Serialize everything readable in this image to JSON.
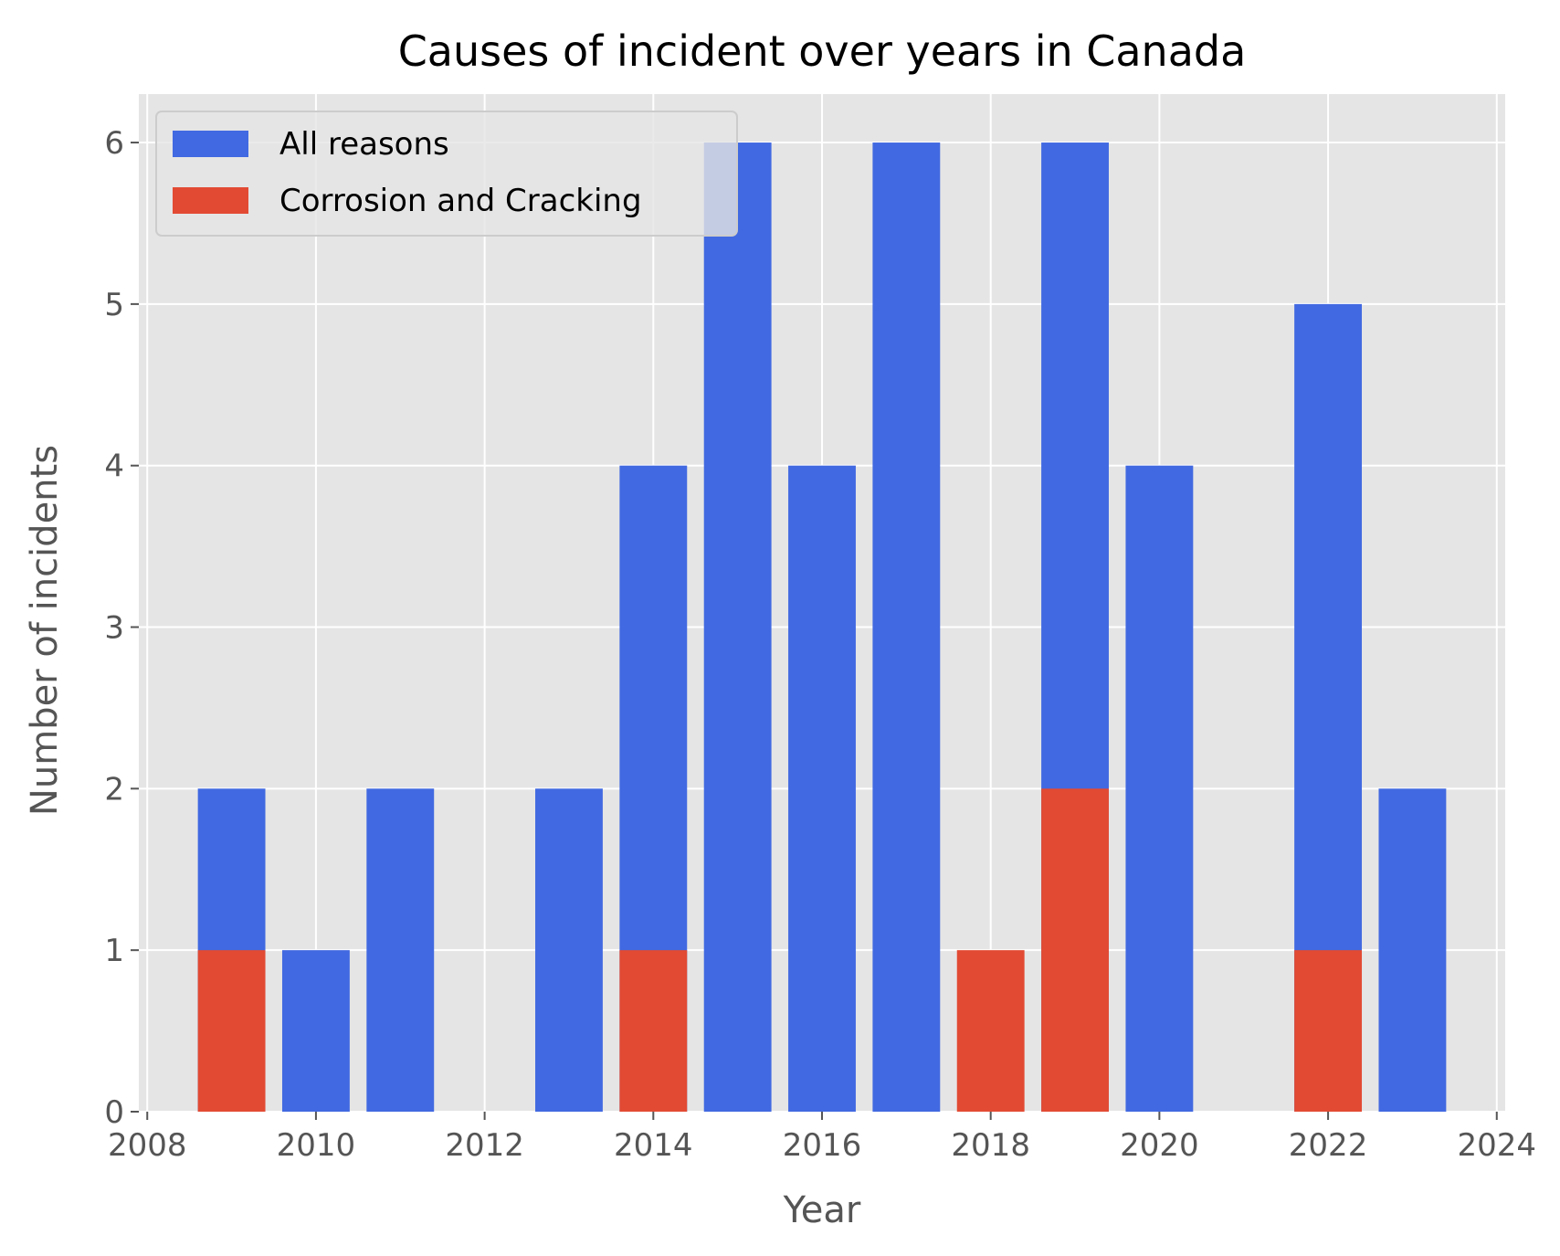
{
  "chart_data": {
    "type": "bar",
    "title": "Causes of incident over years in Canada",
    "xlabel": "Year",
    "ylabel": "Number of incidents",
    "xlim": [
      2007.9,
      2024.1
    ],
    "ylim": [
      0,
      6.3
    ],
    "x_ticks": [
      2008,
      2010,
      2012,
      2014,
      2016,
      2018,
      2020,
      2022,
      2024
    ],
    "y_ticks": [
      0,
      1,
      2,
      3,
      4,
      5,
      6
    ],
    "grid": true,
    "bar_width_years": 0.8,
    "legend_position": "upper-left",
    "series": [
      {
        "name": "All reasons",
        "color": "#4169e1",
        "x": [
          2009,
          2010,
          2011,
          2013,
          2014,
          2015,
          2016,
          2017,
          2019,
          2020,
          2022,
          2023
        ],
        "values": [
          2,
          1,
          2,
          2,
          4,
          6,
          4,
          6,
          6,
          4,
          5,
          2
        ]
      },
      {
        "name": "Corrosion and Cracking",
        "color": "#e24a33",
        "x": [
          2009,
          2014,
          2018,
          2019,
          2022
        ],
        "values": [
          1,
          1,
          1,
          2,
          1
        ]
      }
    ]
  },
  "style": {
    "plot_background": "#e5e5e5",
    "grid_color": "#ffffff",
    "tick_color": "#555555"
  }
}
